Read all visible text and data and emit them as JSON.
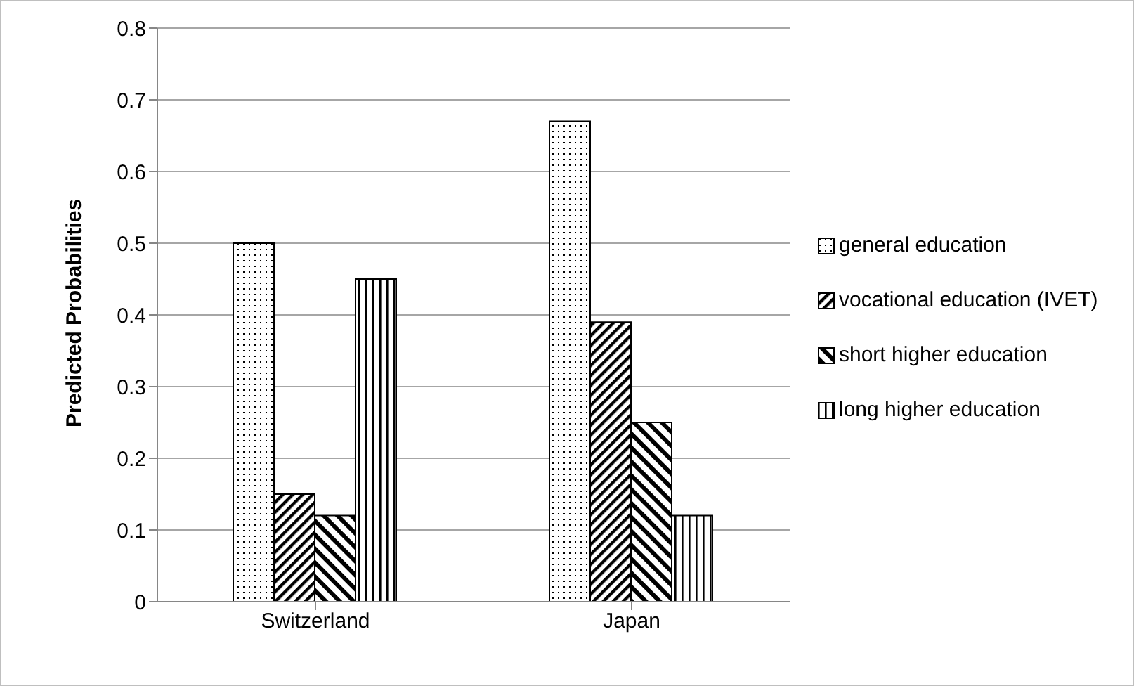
{
  "chart_data": {
    "type": "bar",
    "ylabel": "Predicted Probabilities",
    "categories": [
      "Switzerland",
      "Japan"
    ],
    "series": [
      {
        "name": "general education",
        "color": "#000000",
        "values": [
          0.5,
          0.67
        ]
      },
      {
        "name": "vocational education (IVET)",
        "color": "#000000",
        "values": [
          0.15,
          0.39
        ]
      },
      {
        "name": "short higher education",
        "color": "#000000",
        "values": [
          0.12,
          0.25
        ]
      },
      {
        "name": "long higher education",
        "color": "#000000",
        "values": [
          0.45,
          0.12
        ]
      }
    ],
    "ylim": [
      0,
      0.8
    ],
    "yticks": [
      0,
      0.1,
      0.2,
      0.3,
      0.4,
      0.5,
      0.6,
      0.7,
      0.8
    ],
    "grid": "y",
    "legend": "right"
  }
}
